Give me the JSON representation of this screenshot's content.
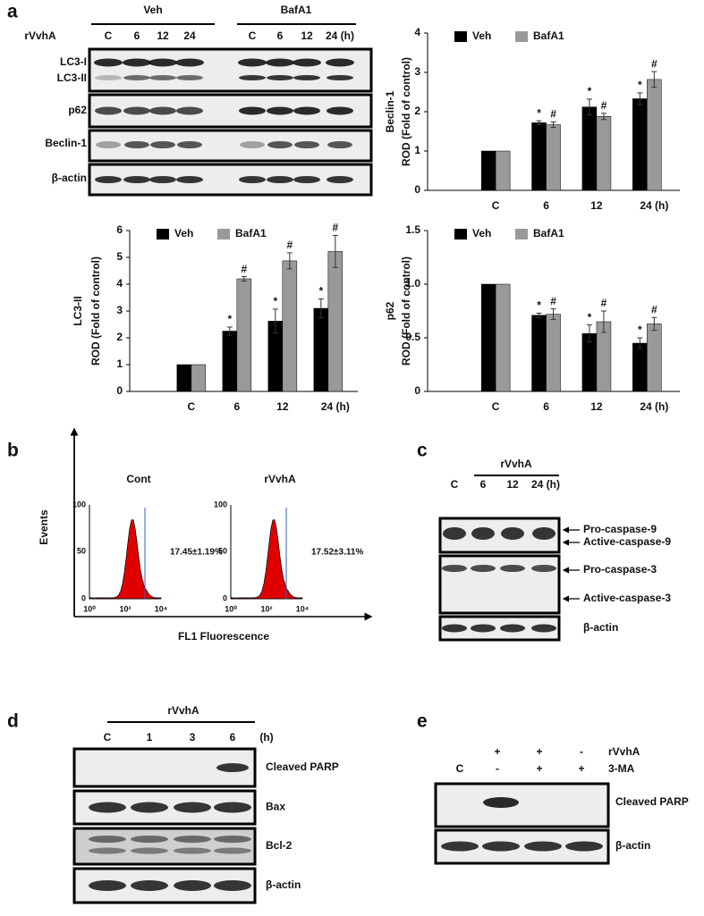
{
  "panel_labels": [
    "a",
    "b",
    "c",
    "d",
    "e"
  ],
  "blot_a": {
    "groups": [
      "Veh",
      "BafA1"
    ],
    "treatment": "rVvhA",
    "lanes": [
      "C",
      "6",
      "12",
      "24",
      "C",
      "6",
      "12",
      "24 (h)"
    ],
    "rows": [
      "LC3-I",
      "LC3-II",
      "p62",
      "Beclin-1",
      "β-actin"
    ]
  },
  "chart_data": [
    {
      "type": "bar",
      "ylabel_title": "Beclin-1",
      "ylabel": "ROD (Fold of control)",
      "categories": [
        "C",
        "6",
        "12",
        "24 (h)"
      ],
      "ylim": [
        0,
        4
      ],
      "yticks": [
        0,
        1,
        2,
        3,
        4
      ],
      "series": [
        {
          "name": "Veh",
          "color": "#000000",
          "values": [
            1,
            1.72,
            2.12,
            2.33
          ],
          "errors": [
            0,
            0.05,
            0.2,
            0.15
          ],
          "markers": [
            null,
            "*",
            "*",
            "*"
          ]
        },
        {
          "name": "BafA1",
          "color": "#999999",
          "values": [
            1,
            1.67,
            1.88,
            2.82
          ],
          "errors": [
            0,
            0.07,
            0.08,
            0.2
          ],
          "markers": [
            null,
            "#",
            "#",
            "#"
          ]
        }
      ]
    },
    {
      "type": "bar",
      "ylabel_title": "LC3-II",
      "ylabel": "ROD (Fold of control)",
      "categories": [
        "C",
        "6",
        "12",
        "24 (h)"
      ],
      "ylim": [
        0,
        6
      ],
      "yticks": [
        0,
        1,
        2,
        3,
        4,
        5,
        6
      ],
      "series": [
        {
          "name": "Veh",
          "color": "#000000",
          "values": [
            1,
            2.25,
            2.62,
            3.1
          ],
          "errors": [
            0,
            0.15,
            0.45,
            0.35
          ],
          "markers": [
            null,
            "*",
            "*",
            "*"
          ]
        },
        {
          "name": "BafA1",
          "color": "#999999",
          "values": [
            1,
            4.2,
            4.87,
            5.22
          ],
          "errors": [
            0,
            0.08,
            0.3,
            0.6
          ],
          "markers": [
            null,
            "#",
            "#",
            "#"
          ]
        }
      ]
    },
    {
      "type": "bar",
      "ylabel_title": "p62",
      "ylabel": "ROD (Fold of control)",
      "categories": [
        "C",
        "6",
        "12",
        "24 (h)"
      ],
      "ylim": [
        0,
        1.5
      ],
      "yticks": [
        0,
        0.5,
        {
          "value": 1,
          "label": "1.0"
        },
        1.5
      ],
      "series": [
        {
          "name": "Veh",
          "color": "#000000",
          "values": [
            1,
            0.71,
            0.54,
            0.45
          ],
          "errors": [
            0,
            0.02,
            0.08,
            0.05
          ],
          "markers": [
            null,
            "*",
            "*",
            "*"
          ]
        },
        {
          "name": "BafA1",
          "color": "#999999",
          "values": [
            1,
            0.72,
            0.65,
            0.63
          ],
          "errors": [
            0,
            0.05,
            0.1,
            0.06
          ],
          "markers": [
            null,
            "#",
            "#",
            "#"
          ]
        }
      ]
    }
  ],
  "flow": {
    "ylabel": "Events",
    "xlabel": "FL1 Fluorescence",
    "panels": [
      {
        "title": "Cont",
        "percent": "17.45±1.19%"
      },
      {
        "title": "rVvhA",
        "percent": "17.52±3.11%"
      }
    ],
    "yticks": [
      "100",
      "50",
      "0"
    ],
    "xticks": [
      "10⁰",
      "10²",
      "10⁴"
    ]
  },
  "blot_c": {
    "treatment": "rVvhA",
    "lanes": [
      "C",
      "6",
      "12",
      "24 (h)"
    ],
    "rows": [
      "Pro-caspase-9",
      "Active-caspase-9",
      "Pro-caspase-3",
      "Active-caspase-3",
      "β-actin"
    ]
  },
  "blot_d": {
    "treatment": "rVvhA",
    "lanes": [
      "C",
      "1",
      "3",
      "6"
    ],
    "unit": "(h)",
    "rows": [
      "Cleaved PARP",
      "Bax",
      "Bcl-2",
      "β-actin"
    ]
  },
  "blot_e": {
    "conditions": [
      "rVvhA",
      "3-MA"
    ],
    "control": "C",
    "signs": [
      [
        "+",
        "+",
        "-"
      ],
      [
        "-",
        "+",
        "+"
      ]
    ],
    "rows": [
      "Cleaved PARP",
      "β-actin"
    ]
  }
}
